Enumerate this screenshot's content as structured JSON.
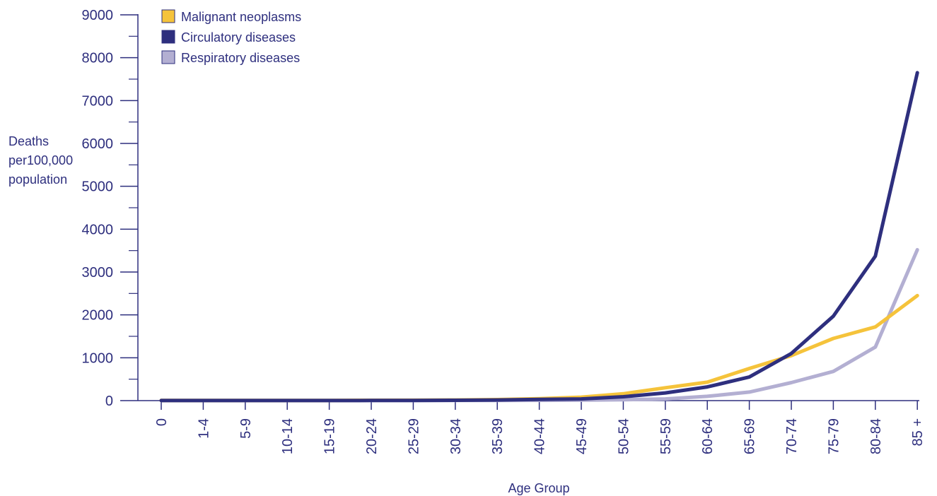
{
  "chart_data": {
    "type": "line",
    "xlabel": "Age Group",
    "ylabel_lines": [
      "Deaths",
      "per100,000",
      "population"
    ],
    "ylim": [
      0,
      9000
    ],
    "yticks": [
      0,
      1000,
      2000,
      3000,
      4000,
      5000,
      6000,
      7000,
      8000,
      9000
    ],
    "grid": false,
    "legend_position": "top-left",
    "categories": [
      "0",
      "1-4",
      "5-9",
      "10-14",
      "15-19",
      "20-24",
      "25-29",
      "30-34",
      "35-39",
      "40-44",
      "45-49",
      "50-54",
      "55-59",
      "60-64",
      "65-69",
      "70-74",
      "75-79",
      "80-84",
      "85 +"
    ],
    "series": [
      {
        "name": "Malignant neoplasms",
        "color": "#f5c33b",
        "values": [
          5,
          4,
          4,
          4,
          5,
          8,
          10,
          15,
          25,
          45,
          80,
          160,
          300,
          430,
          750,
          1050,
          1450,
          1720,
          2450
        ]
      },
      {
        "name": "Circulatory diseases",
        "color": "#2e2f7e",
        "values": [
          2,
          1,
          1,
          1,
          2,
          3,
          5,
          8,
          15,
          30,
          40,
          90,
          180,
          320,
          550,
          1100,
          1970,
          3370,
          7650
        ]
      },
      {
        "name": "Respiratory diseases",
        "color": "#b3afd2",
        "values": [
          3,
          1,
          1,
          1,
          1,
          2,
          2,
          3,
          4,
          6,
          10,
          20,
          40,
          100,
          200,
          420,
          680,
          1250,
          3520
        ]
      }
    ]
  }
}
